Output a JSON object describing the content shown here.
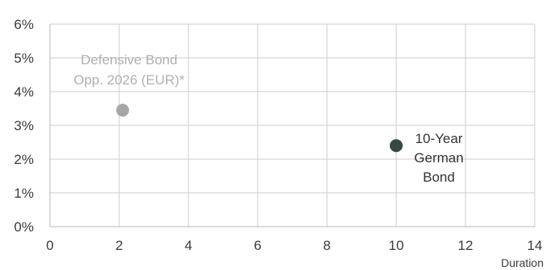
{
  "chart_data": {
    "type": "scatter",
    "title": "",
    "xlabel": "Duration",
    "ylabel": "",
    "xlim": [
      0,
      14
    ],
    "ylim": [
      0,
      6
    ],
    "x_ticks": [
      0,
      2,
      4,
      6,
      8,
      10,
      12,
      14
    ],
    "x_tick_labels": [
      "0",
      "2",
      "4",
      "6",
      "8",
      "10",
      "12",
      "14"
    ],
    "y_ticks": [
      0,
      1,
      2,
      3,
      4,
      5,
      6
    ],
    "y_tick_labels": [
      "0%",
      "1%",
      "2%",
      "3%",
      "4%",
      "5%",
      "6%"
    ],
    "grid": true,
    "legend": "none",
    "points": [
      {
        "x": 2.1,
        "y": 3.45,
        "label": [
          "Defensive Bond",
          "Opp. 2026 (EUR)*"
        ],
        "label_position": "above",
        "color": "#a6a6a6",
        "label_color": "#b0b0b0"
      },
      {
        "x": 10.0,
        "y": 2.4,
        "label": [
          "10-Year",
          "German",
          "Bond"
        ],
        "label_position": "right",
        "color": "#354a40",
        "label_color": "#333333"
      }
    ],
    "colors": {
      "grid": "#cccccc",
      "axis": "#b8b8b8"
    }
  }
}
